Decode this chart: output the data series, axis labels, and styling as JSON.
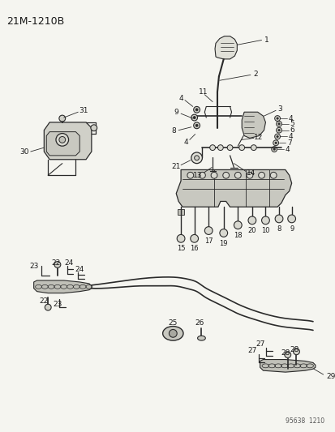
{
  "title": "21M-1210B",
  "bg_color": "#f5f5f0",
  "line_color": "#2a2a2a",
  "text_color": "#1a1a1a",
  "watermark": "95638  1210",
  "figure_width": 4.14,
  "figure_height": 5.33,
  "dpi": 100
}
